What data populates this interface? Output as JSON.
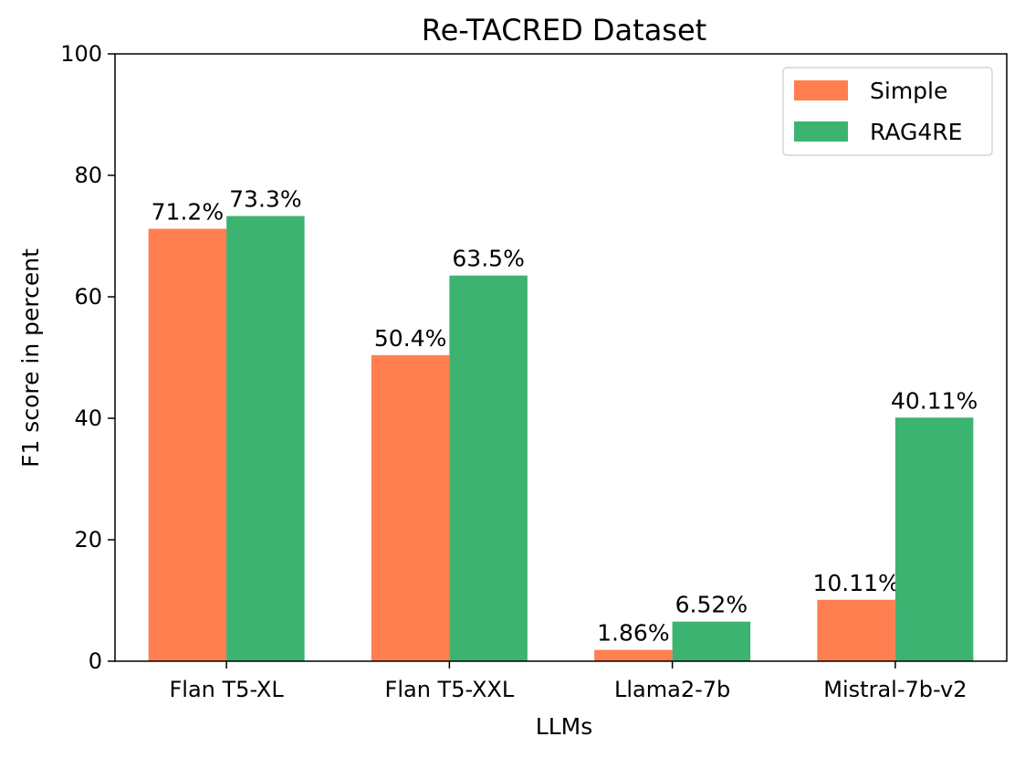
{
  "chart_data": {
    "type": "bar",
    "title": "Re-TACRED Dataset",
    "xlabel": "LLMs",
    "ylabel": "F1 score in percent",
    "ylim": [
      0,
      100
    ],
    "yticks": [
      0,
      20,
      40,
      60,
      80,
      100
    ],
    "categories": [
      "Flan T5-XL",
      "Flan T5-XXL",
      "Llama2-7b",
      "Mistral-7b-v2"
    ],
    "series": [
      {
        "name": "Simple",
        "color": "#ff7f50",
        "values": [
          71.2,
          50.4,
          1.86,
          10.11
        ],
        "labels": [
          "71.2%",
          "50.4%",
          "1.86%",
          "10.11%"
        ]
      },
      {
        "name": "RAG4RE",
        "color": "#3cb371",
        "values": [
          73.3,
          63.5,
          6.52,
          40.11
        ],
        "labels": [
          "73.3%",
          "63.5%",
          "6.52%",
          "40.11%"
        ]
      }
    ],
    "legend_position": "top-right",
    "grid": false
  }
}
